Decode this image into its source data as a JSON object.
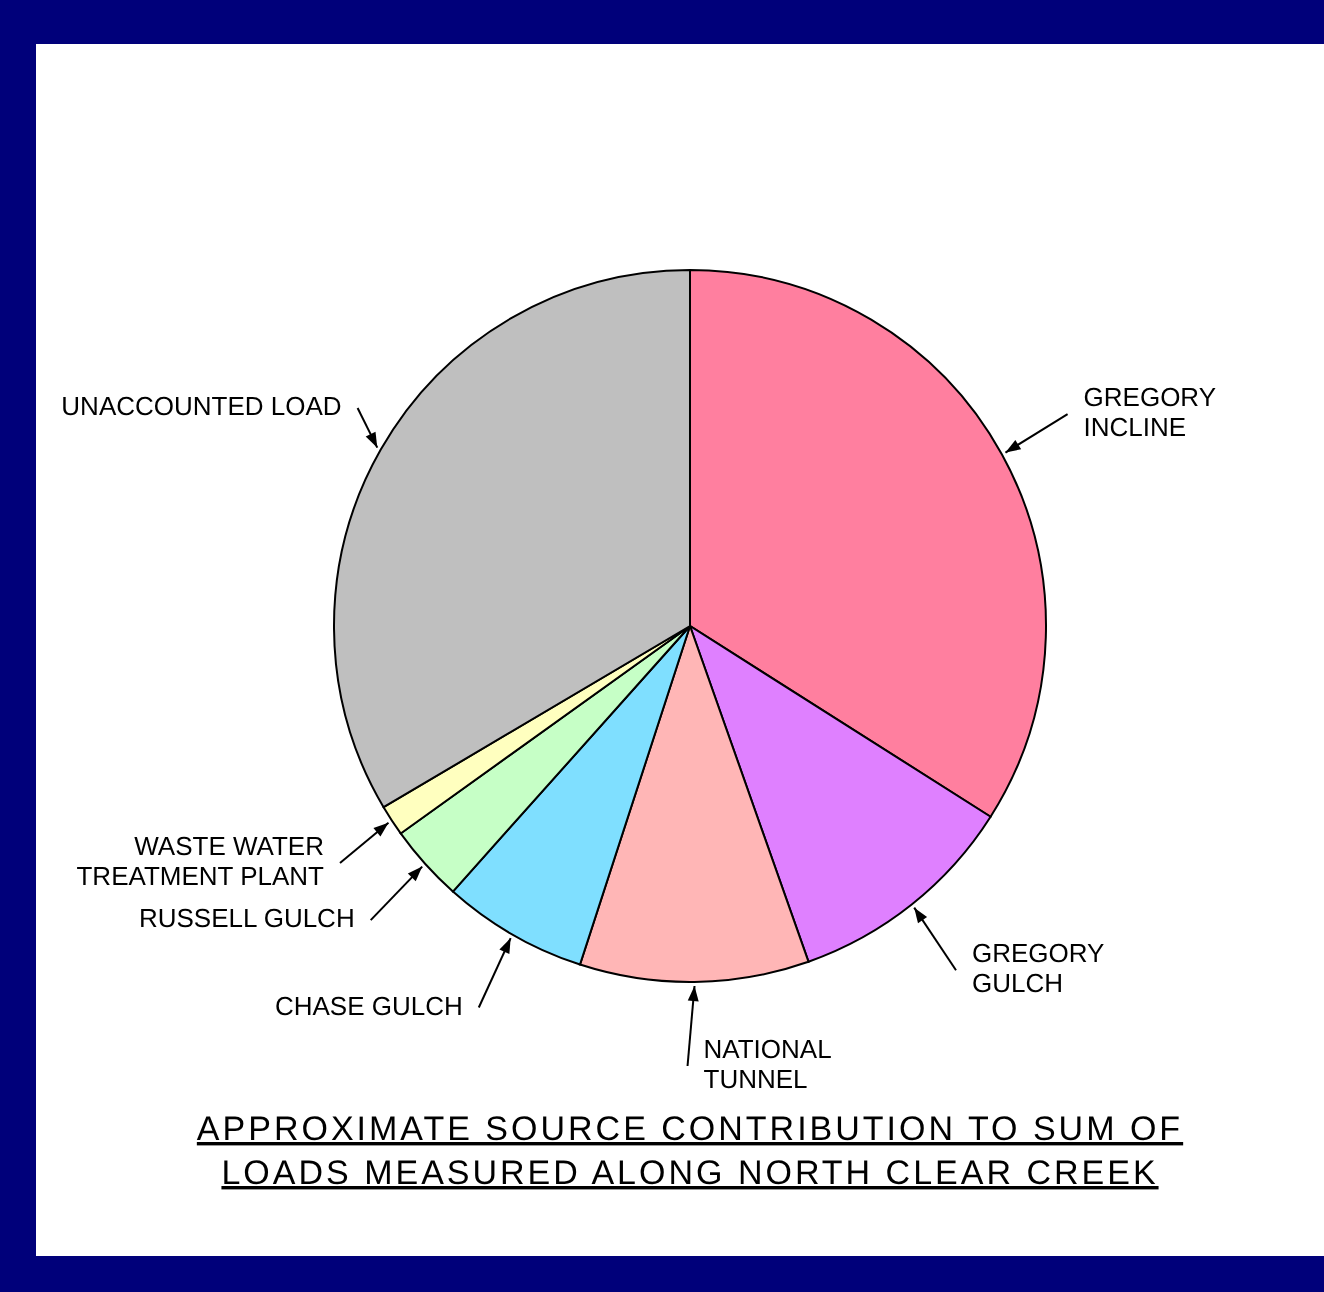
{
  "chart_data": {
    "type": "pie",
    "title": "APPROXIMATE SOURCE CONTRIBUTION TO SUM OF LOADS MEASURED ALONG NORTH CLEAR CREEK",
    "categories": [
      "GREGORY INCLINE",
      "GREGORY GULCH",
      "NATIONAL TUNNEL",
      "CHASE GULCH",
      "RUSSELL GULCH",
      "WASTE WATER TREATMENT PLANT",
      "UNACCOUNTED LOAD"
    ],
    "values": [
      34,
      10.6,
      10.4,
      6.6,
      3.5,
      1.4,
      33.5
    ],
    "colors": [
      "#ff7f9f",
      "#df80ff",
      "#ffb6b6",
      "#7fdfff",
      "#c6ffc6",
      "#ffffbf",
      "#bfbfbf"
    ]
  }
}
